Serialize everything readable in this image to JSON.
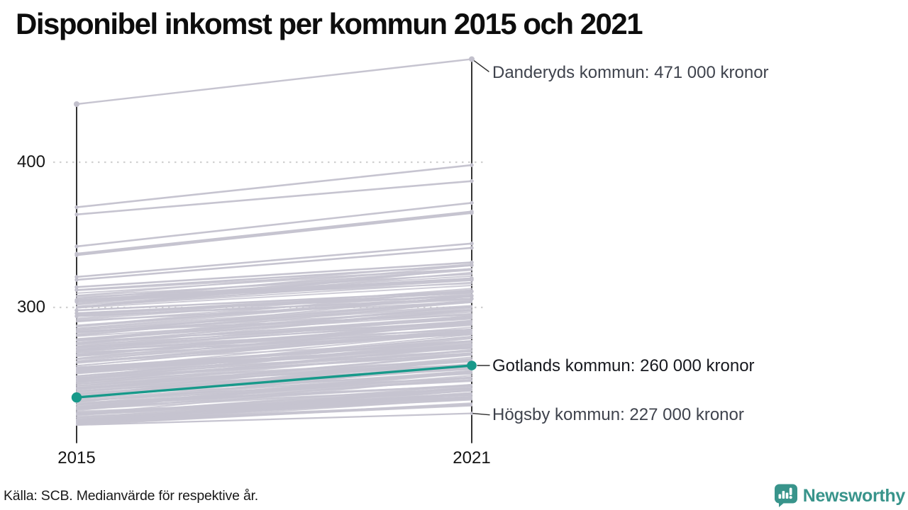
{
  "title": "Disponibel inkomst per kommun 2015 och 2021",
  "footer": {
    "source": "Källa: SCB. Medianvärde för respektive år.",
    "brand": "Newsworthy"
  },
  "colors": {
    "background": "#ffffff",
    "highlight_teal": "#17998a",
    "line_gray": "#c6c4d0",
    "dot_gray": "#c2c0cc",
    "axis": "#101010",
    "grid": "#cbcbcb",
    "leader": "#2e2e2e",
    "annotation_text": "#3f434d",
    "highlight_annotation_text": "#17191f",
    "brand_teal": "#38948b"
  },
  "chart_data": {
    "type": "line",
    "variant": "slope-chart",
    "x": [
      2015,
      2021
    ],
    "x_tick_labels": [
      "2015",
      "2021"
    ],
    "y_ticks": [
      300,
      400
    ],
    "y_tick_labels": [
      "300",
      "400"
    ],
    "ylim": [
      210,
      480
    ],
    "grid": "dotted horizontal lines at y ticks",
    "legend": "none",
    "series": [
      {
        "name": "Danderyds kommun",
        "values": [
          440,
          471
        ],
        "role": "top-outlier",
        "color": "#c6c4d0"
      },
      {
        "name": "Gotlands kommun",
        "values": [
          238,
          260
        ],
        "role": "highlight",
        "color": "#17998a"
      },
      {
        "name": "Högsby kommun",
        "values": [
          219,
          227
        ],
        "role": "bottom",
        "color": "#c6c4d0"
      }
    ],
    "annotations": {
      "top": {
        "label": "Danderyds kommun: 471 000 kronor",
        "value_2021": 471
      },
      "highlight": {
        "label": "Gotlands kommun: 260 000 kronor",
        "value_2021": 260
      },
      "bottom": {
        "label": "Högsby kommun: 227 000 kronor",
        "value_2021": 227
      }
    },
    "background_lines": [
      [
        369,
        398
      ],
      [
        364,
        387
      ],
      [
        342,
        372
      ],
      [
        337,
        366
      ],
      [
        336,
        365
      ],
      [
        321,
        344
      ],
      [
        319,
        341
      ],
      [
        314,
        331
      ],
      [
        312,
        329
      ],
      [
        305,
        320
      ],
      [
        304,
        319
      ],
      [
        298,
        311
      ],
      [
        296,
        308
      ],
      [
        294,
        306
      ]
    ],
    "background_band": {
      "note": "unlabeled municipalities drawn as overlapping light gray slope lines",
      "count": 215,
      "values_2015_range": [
        219,
        312
      ],
      "gain_range": [
        11,
        27
      ],
      "seed": 12
    }
  }
}
